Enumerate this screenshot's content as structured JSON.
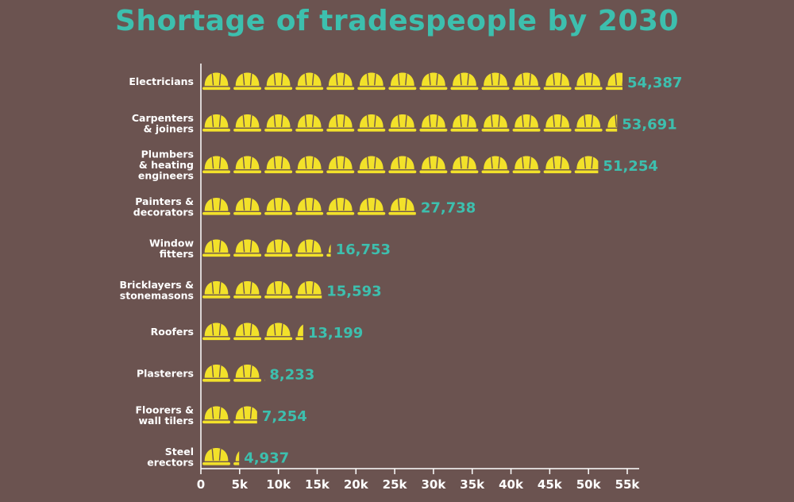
{
  "chart_data": {
    "type": "bar",
    "title": "Shortage of tradespeople by 2030",
    "categories": [
      [
        "Electricians"
      ],
      [
        "Carpenters",
        "& joiners"
      ],
      [
        "Plumbers",
        "& heating",
        "engineers"
      ],
      [
        "Painters &",
        "decorators"
      ],
      [
        "Window",
        "fitters"
      ],
      [
        "Bricklayers &",
        "stonemasons"
      ],
      [
        "Roofers"
      ],
      [
        "Plasterers"
      ],
      [
        "Floorers &",
        "wall tilers"
      ],
      [
        "Steel",
        "erectors"
      ]
    ],
    "values": [
      54387,
      53691,
      51254,
      27738,
      16753,
      15593,
      13199,
      8233,
      7254,
      4937
    ],
    "value_labels": [
      "54,387",
      "53,691",
      "51,254",
      "27,738",
      "16,753",
      "15,593",
      "13,199",
      "8,233",
      "7,254",
      "4,937"
    ],
    "xlim": [
      0,
      55000
    ],
    "xticks": [
      0,
      5000,
      10000,
      15000,
      20000,
      25000,
      30000,
      35000,
      40000,
      45000,
      50000,
      55000
    ],
    "xtick_labels": [
      "0",
      "5k",
      "10k",
      "15k",
      "20k",
      "25k",
      "30k",
      "35k",
      "40k",
      "45k",
      "50k",
      "55k"
    ],
    "icon": "hard-hat-icon",
    "icon_unit": 4000,
    "grid": false,
    "colors": {
      "background": "#6b5350",
      "icon": "#f2e12a",
      "value": "#3dbfae",
      "title": "#3dbfae",
      "axis": "#ffffff",
      "text": "#ffffff"
    }
  }
}
